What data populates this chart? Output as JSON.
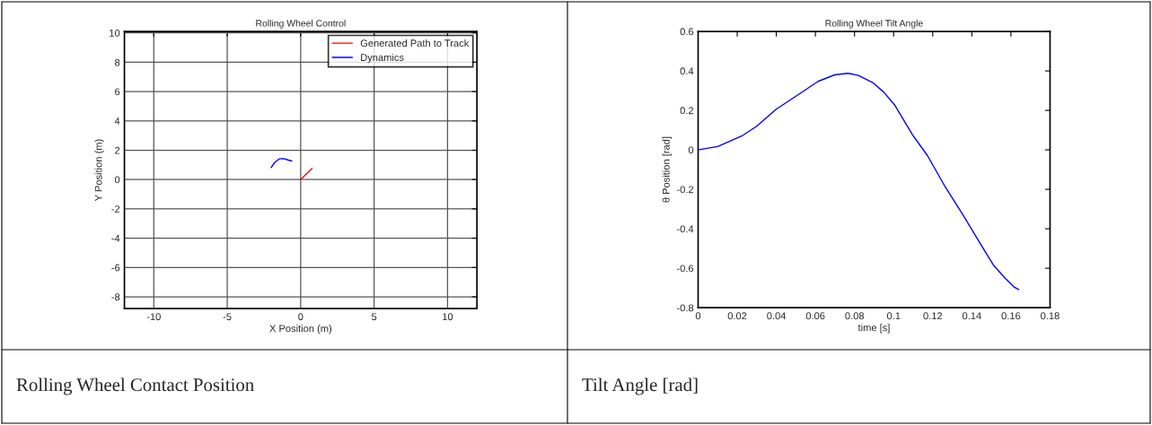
{
  "chart_data": [
    {
      "type": "line",
      "title": "Rolling Wheel Control",
      "xlabel": "X Position (m)",
      "ylabel": "Y Position (m)",
      "xlim": [
        -12,
        12
      ],
      "ylim": [
        -8.8,
        10.1
      ],
      "xticks": [
        -10,
        -5,
        0,
        5,
        10
      ],
      "yticks": [
        -8,
        -6,
        -4,
        -2,
        0,
        2,
        4,
        6,
        8,
        10
      ],
      "grid": true,
      "legend": "top right",
      "annotations": [
        "Rolling Wheel Contact Position"
      ],
      "series": [
        {
          "name": "Generated Path to Track",
          "color": "#ff0000",
          "x": [
            0,
            0.77
          ],
          "values": [
            0,
            0.75
          ]
        },
        {
          "name": "Dynamics",
          "color": "#0000ff",
          "x": [
            -2.01,
            -1.77,
            -1.46,
            -1.16,
            -0.85,
            -0.61
          ],
          "values": [
            0.82,
            1.16,
            1.41,
            1.43,
            1.33,
            1.27
          ]
        }
      ]
    },
    {
      "type": "line",
      "title": "Rolling Wheel Tilt Angle",
      "xlabel": "time [s]",
      "ylabel": "θ Position [rad]",
      "xlim": [
        0,
        0.18
      ],
      "ylim": [
        -0.8,
        0.6
      ],
      "xticks": [
        0,
        0.02,
        0.04,
        0.06,
        0.08,
        0.1,
        0.12,
        0.14,
        0.16,
        0.18
      ],
      "yticks": [
        -0.8,
        -0.6,
        -0.4,
        -0.2,
        0,
        0.2,
        0.4,
        0.6
      ],
      "grid": false,
      "annotations": [
        "Tilt Angle [rad]"
      ],
      "series": [
        {
          "color": "#0000ff",
          "x": [
            0,
            0.0101,
            0.0223,
            0.03,
            0.04,
            0.0499,
            0.0614,
            0.0698,
            0.0767,
            0.082,
            0.0897,
            0.095,
            0.1004,
            0.1096,
            0.1173,
            0.1264,
            0.1356,
            0.1448,
            0.1509,
            0.157,
            0.1616,
            0.1639
          ],
          "values": [
            0,
            0.017,
            0.07,
            0.12,
            0.206,
            0.271,
            0.347,
            0.38,
            0.388,
            0.377,
            0.338,
            0.292,
            0.229,
            0.077,
            -0.029,
            -0.188,
            -0.332,
            -0.483,
            -0.582,
            -0.65,
            -0.695,
            -0.708
          ]
        }
      ]
    }
  ]
}
